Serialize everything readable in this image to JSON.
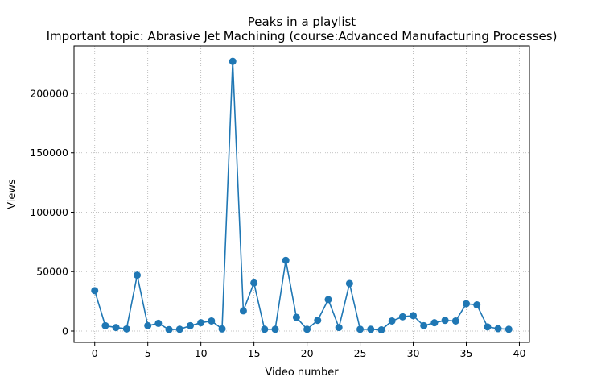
{
  "chart_data": {
    "type": "line",
    "title": "Peaks in a playlist",
    "subtitle": "Important topic: Abrasive Jet Machining (course:Advanced Manufacturing Processes)",
    "xlabel": "Video number",
    "ylabel": "Views",
    "xlim": [
      -1.95,
      40.95
    ],
    "ylim": [
      -9500,
      240000
    ],
    "xticks": [
      0,
      5,
      10,
      15,
      20,
      25,
      30,
      35,
      40
    ],
    "yticks": [
      0,
      50000,
      100000,
      150000,
      200000
    ],
    "grid": true,
    "grid_style": "dotted",
    "legend": "none",
    "color": "#1f77b4",
    "marker": "circle",
    "series": [
      {
        "x": [
          0,
          1,
          2,
          3,
          4,
          5,
          6,
          7,
          8,
          9,
          10,
          11,
          12,
          13,
          14,
          15,
          16,
          17,
          18,
          19,
          20,
          21,
          22,
          23,
          24,
          25,
          26,
          27,
          28,
          29,
          30,
          31,
          32,
          33,
          34,
          35,
          36,
          37,
          38,
          39
        ],
        "values": [
          34000,
          4500,
          3000,
          1800,
          47000,
          4500,
          6500,
          1200,
          1500,
          4500,
          7000,
          8500,
          1800,
          227000,
          17000,
          40500,
          1500,
          1500,
          59500,
          11500,
          1500,
          9000,
          26500,
          3000,
          40000,
          1500,
          1500,
          1000,
          8500,
          12000,
          13000,
          4500,
          7000,
          9000,
          8500,
          23000,
          22000,
          3500,
          2000,
          1500
        ]
      }
    ]
  }
}
